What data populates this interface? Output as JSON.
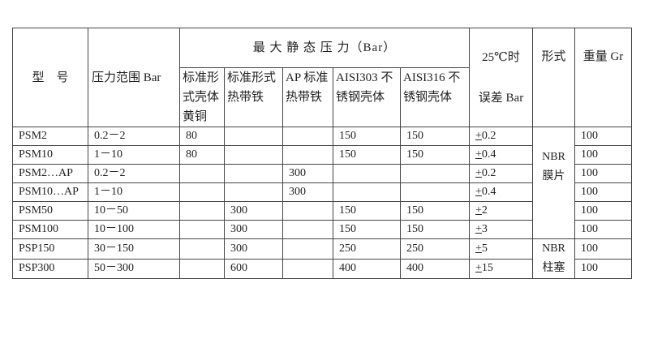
{
  "header": {
    "model": "型　号",
    "range": "压力范围 Bar",
    "max_static": "最 大 静 态 压 力（Bar）",
    "sub": [
      "标准形式壳体黄铜",
      "标准形式热带铁",
      "AP 标准热带铁",
      "AISI303 不锈钢壳体",
      "AISI316 不锈钢壳体"
    ],
    "tol_line1": "25℃时",
    "tol_line2": "误差 Bar",
    "shape": "形式",
    "weight": "重量 Gr"
  },
  "rows": [
    {
      "model": "PSM2",
      "range": "0.2－2",
      "c1": "80",
      "c2": "",
      "c3": "",
      "c4": "150",
      "c5": "150",
      "tol": "0.2",
      "weight": "100"
    },
    {
      "model": "PSM10",
      "range": "1－10",
      "c1": "80",
      "c2": "",
      "c3": "",
      "c4": "150",
      "c5": "150",
      "tol": "0.4",
      "weight": "100"
    },
    {
      "model": "PSM2…AP",
      "range": "0.2－2",
      "c1": "",
      "c2": "",
      "c3": "300",
      "c4": "",
      "c5": "",
      "tol": "0.2",
      "weight": "100"
    },
    {
      "model": "PSM10…AP",
      "range": "1－10",
      "c1": "",
      "c2": "",
      "c3": "300",
      "c4": "",
      "c5": "",
      "tol": "0.4",
      "weight": "100"
    },
    {
      "model": "PSM50",
      "range": "10－50",
      "c1": "",
      "c2": "300",
      "c3": "",
      "c4": "150",
      "c5": "150",
      "tol": "2",
      "weight": "100"
    },
    {
      "model": "PSM100",
      "range": "10－100",
      "c1": "",
      "c2": "300",
      "c3": "",
      "c4": "150",
      "c5": "150",
      "tol": "3",
      "weight": "100"
    },
    {
      "model": "PSP150",
      "range": "30－150",
      "c1": "",
      "c2": "300",
      "c3": "",
      "c4": "250",
      "c5": "250",
      "tol": "5",
      "weight": "100"
    },
    {
      "model": "PSP300",
      "range": "50－300",
      "c1": "",
      "c2": "600",
      "c3": "",
      "c4": "400",
      "c5": "400",
      "tol": "15",
      "weight": "100"
    }
  ],
  "shape_groups": [
    {
      "line1": "NBR",
      "line2": "膜片"
    },
    {
      "line1": "NBR",
      "line2": "柱塞"
    }
  ],
  "pm_symbol": "+"
}
